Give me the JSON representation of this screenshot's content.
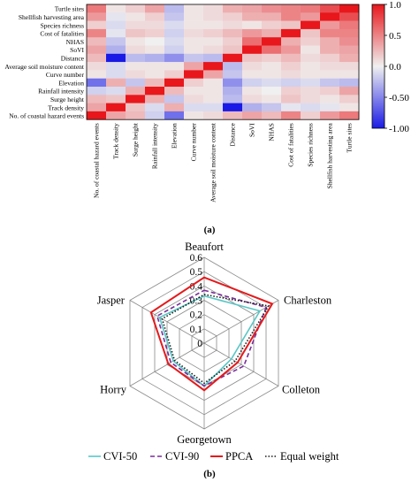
{
  "chart_data": [
    {
      "type": "heatmap",
      "panel_label": "(a)",
      "row_labels": [
        "Turtle sites",
        "Shellfish harvesting area",
        "Species richness",
        "Cost of fatalities",
        "NHAS",
        "SoVI",
        "Distance",
        "Average soil moisture content",
        "Curve number",
        "Elevation",
        "Rainfall intensity",
        "Surge height",
        "Track density",
        "No. of coastal hazard events"
      ],
      "col_labels": [
        "No. of coastal hazard events",
        "Track density",
        "Surge height",
        "Rainfall intensity",
        "Elevation",
        "Curve number",
        "Average soil moisture content",
        "Distance",
        "SoVI",
        "NHAS",
        "Cost of fatalities",
        "Species richness",
        "Shellfish harvesting area",
        "Turtle sites"
      ],
      "values": [
        [
          0.55,
          0.05,
          0.15,
          0.35,
          -0.25,
          0.05,
          0.1,
          0.3,
          0.35,
          0.45,
          0.5,
          0.55,
          0.75,
          1.0
        ],
        [
          0.4,
          -0.05,
          0.05,
          0.15,
          -0.2,
          0.05,
          0.1,
          0.15,
          0.3,
          0.3,
          0.5,
          0.4,
          1.0,
          0.75
        ],
        [
          0.15,
          -0.1,
          0.1,
          0.1,
          -0.1,
          0.05,
          0.05,
          0.1,
          0.05,
          0.15,
          0.2,
          1.0,
          0.4,
          0.55
        ],
        [
          0.5,
          -0.05,
          0.2,
          0.15,
          -0.15,
          0.1,
          0.15,
          0.25,
          0.4,
          0.3,
          1.0,
          0.2,
          0.5,
          0.5
        ],
        [
          0.25,
          -0.2,
          0.05,
          0.0,
          -0.1,
          0.05,
          0.05,
          0.15,
          0.6,
          1.0,
          0.3,
          0.15,
          0.3,
          0.45
        ],
        [
          0.35,
          -0.3,
          0.1,
          0.05,
          -0.15,
          0.05,
          0.1,
          0.2,
          1.0,
          0.6,
          0.4,
          0.05,
          0.3,
          0.35
        ],
        [
          0.25,
          -1.0,
          -0.25,
          -0.3,
          -0.45,
          -0.2,
          -0.25,
          1.0,
          0.2,
          0.15,
          0.25,
          0.1,
          0.15,
          0.3
        ],
        [
          0.1,
          -0.1,
          0.05,
          0.05,
          0.05,
          0.35,
          1.0,
          -0.25,
          0.1,
          0.05,
          0.15,
          0.05,
          0.1,
          0.1
        ],
        [
          0.05,
          -0.1,
          0.1,
          0.05,
          0.15,
          1.0,
          0.35,
          -0.2,
          0.05,
          0.05,
          0.1,
          0.05,
          0.05,
          0.05
        ],
        [
          -0.6,
          0.3,
          -0.2,
          0.25,
          1.0,
          0.15,
          0.05,
          -0.45,
          -0.15,
          -0.1,
          -0.15,
          -0.1,
          -0.2,
          -0.25
        ],
        [
          -0.15,
          -0.1,
          0.3,
          1.0,
          0.25,
          0.05,
          0.05,
          -0.3,
          0.05,
          0.0,
          0.15,
          0.1,
          0.15,
          0.35
        ],
        [
          0.25,
          0.2,
          1.0,
          0.3,
          -0.2,
          0.1,
          0.05,
          -0.25,
          0.1,
          0.05,
          0.2,
          0.1,
          0.05,
          0.15
        ],
        [
          0.35,
          1.0,
          0.2,
          -0.1,
          0.3,
          -0.1,
          -0.1,
          -1.0,
          -0.3,
          -0.2,
          -0.05,
          -0.1,
          -0.05,
          0.05
        ],
        [
          1.0,
          0.35,
          0.25,
          -0.15,
          -0.6,
          0.05,
          0.1,
          0.25,
          0.35,
          0.25,
          0.5,
          0.15,
          0.4,
          0.55
        ]
      ],
      "colorbar": {
        "ticks": [
          "1.0",
          "0.5",
          "0.0",
          "-0.50",
          "-1.00"
        ],
        "tick_values": [
          1.0,
          0.5,
          0.0,
          -0.5,
          -1.0
        ],
        "range": [
          -1,
          1
        ]
      },
      "colors": {
        "high": "#e8171c",
        "mid": "#f0f0f0",
        "low": "#1a1ae6"
      }
    },
    {
      "type": "radar",
      "panel_label": "(b)",
      "axes": [
        "Beaufort",
        "Charleston",
        "Colleton",
        "Georgetown",
        "Horry",
        "Jasper"
      ],
      "ticks": [
        "0",
        "0.1",
        "0.2",
        "0.3",
        "0.4",
        "0.5",
        "0.6"
      ],
      "tick_values": [
        0,
        0.1,
        0.2,
        0.3,
        0.4,
        0.5,
        0.6
      ],
      "rmax": 0.6,
      "series": [
        {
          "name": "CVI-50",
          "values": [
            0.33,
            0.45,
            0.22,
            0.3,
            0.25,
            0.36
          ],
          "color": "#59c6c6",
          "style": "solid"
        },
        {
          "name": "CVI-90",
          "values": [
            0.37,
            0.5,
            0.32,
            0.3,
            0.27,
            0.38
          ],
          "color": "#7a2d9a",
          "style": "dashed"
        },
        {
          "name": "PPCA",
          "values": [
            0.46,
            0.55,
            0.27,
            0.33,
            0.29,
            0.43
          ],
          "color": "#e41a1c",
          "style": "solid"
        },
        {
          "name": "Equal weight",
          "values": [
            0.34,
            0.52,
            0.25,
            0.28,
            0.24,
            0.34
          ],
          "color": "#1a1a1a",
          "style": "dotted"
        }
      ]
    }
  ]
}
